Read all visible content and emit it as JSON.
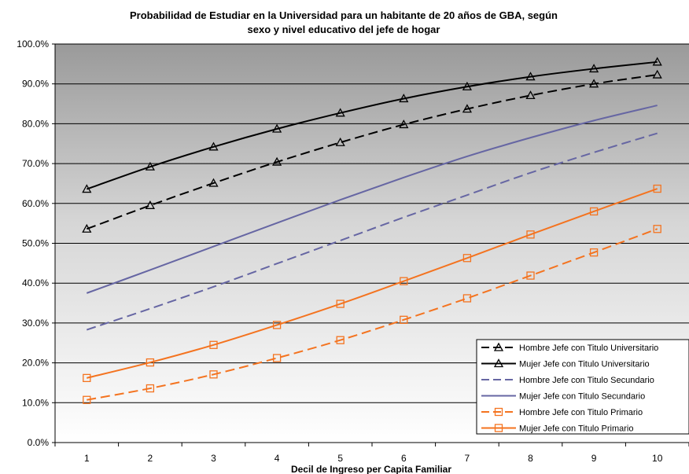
{
  "chart_data": {
    "type": "line",
    "title_line1": "Probabilidad de Estudiar en la Universidad para un habitante de 20 años de GBA, según",
    "title_line2": "sexo y nivel educativo del jefe de hogar",
    "xlabel": "Decil de Ingreso per Capita Familiar",
    "ylabel": "",
    "x": [
      1,
      2,
      3,
      4,
      5,
      6,
      7,
      8,
      9,
      10
    ],
    "x_tick_labels": [
      "1",
      "2",
      "3",
      "4",
      "5",
      "6",
      "7",
      "8",
      "9",
      "10"
    ],
    "ylim": [
      0,
      100
    ],
    "y_ticks": [
      0,
      10,
      20,
      30,
      40,
      50,
      60,
      70,
      80,
      90,
      100
    ],
    "y_tick_labels": [
      "0.0%",
      "10.0%",
      "20.0%",
      "30.0%",
      "40.0%",
      "50.0%",
      "60.0%",
      "70.0%",
      "80.0%",
      "90.0%",
      "100.0%"
    ],
    "grid": true,
    "background": "gradient gray to white",
    "legend_position": "bottom-right",
    "series": [
      {
        "name": "Hombre Jefe con Titulo Universitario",
        "color": "#000000",
        "dash": "dashed",
        "marker": "triangle",
        "values": [
          53.6,
          59.5,
          65.1,
          70.4,
          75.3,
          79.8,
          83.7,
          87.1,
          90.0,
          92.3
        ]
      },
      {
        "name": "Mujer Jefe con Titulo Universitario",
        "color": "#000000",
        "dash": "solid",
        "marker": "triangle",
        "values": [
          63.6,
          69.2,
          74.2,
          78.7,
          82.7,
          86.3,
          89.3,
          91.8,
          93.8,
          95.5
        ]
      },
      {
        "name": "Hombre Jefe con Titulo Secundario",
        "color": "#6666a3",
        "dash": "dashed",
        "marker": "none",
        "values": [
          28.3,
          33.6,
          39.1,
          44.9,
          50.7,
          56.5,
          62.1,
          67.7,
          72.8,
          77.6
        ]
      },
      {
        "name": "Mujer Jefe con Titulo Secundario",
        "color": "#6666a3",
        "dash": "solid",
        "marker": "none",
        "values": [
          37.5,
          43.3,
          49.2,
          55.1,
          60.9,
          66.5,
          71.8,
          76.5,
          80.8,
          84.6
        ]
      },
      {
        "name": "Hombre Jefe con Titulo Primario",
        "color": "#f4731f",
        "dash": "dashed",
        "marker": "square",
        "values": [
          10.7,
          13.6,
          17.1,
          21.2,
          25.7,
          30.8,
          36.2,
          41.9,
          47.7,
          53.6
        ]
      },
      {
        "name": "Mujer Jefe con Titulo Primario",
        "color": "#f4731f",
        "dash": "solid",
        "marker": "square",
        "values": [
          16.2,
          20.1,
          24.5,
          29.5,
          34.8,
          40.5,
          46.3,
          52.2,
          58.0,
          63.7
        ]
      }
    ]
  }
}
